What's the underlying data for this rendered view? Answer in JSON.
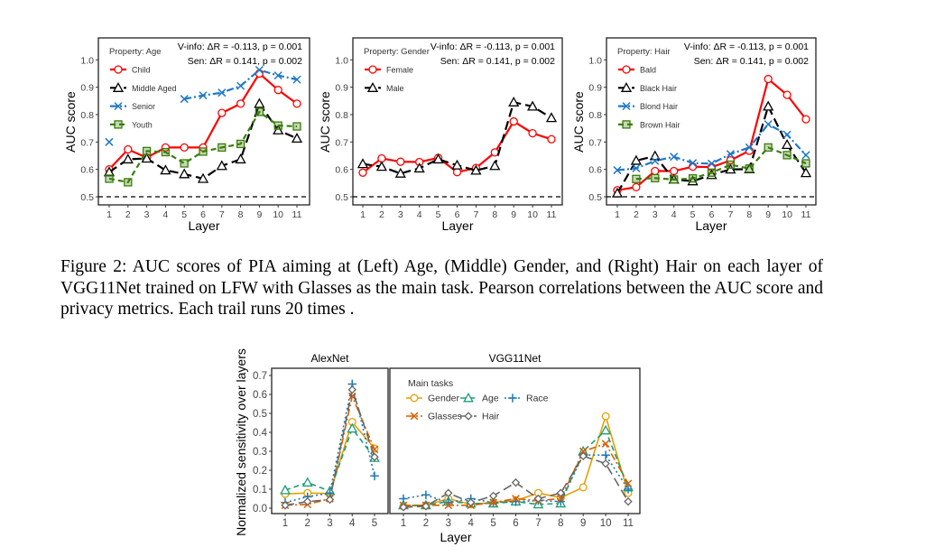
{
  "caption": "Figure 2: AUC scores of PIA aiming at (Left) Age, (Middle) Gender, and (Right) Hair on each layer of VGG11Net trained on LFW with Glasses as the main task.  Pearson correlations between the AUC score and privacy metrics. Each trail runs 20 times .",
  "chart_data": [
    {
      "type": "line",
      "legend_title": "Property: Age",
      "annotations": [
        "V-info: ΔR = -0.113, p = 0.001",
        "Sen: ΔR = 0.141, p = 0.002"
      ],
      "xlabel": "Layer",
      "ylabel": "AUC score",
      "x": [
        1,
        2,
        3,
        4,
        5,
        6,
        7,
        8,
        9,
        10,
        11
      ],
      "ylim": [
        0.47,
        1.05
      ],
      "yticks": [
        "0.5",
        "0.6",
        "0.7",
        "0.8",
        "0.9",
        "1.0"
      ],
      "reference_line": 0.5,
      "legend_placement": "top-left",
      "series": [
        {
          "name": "Child",
          "color": "#ff0000",
          "marker": "circle",
          "dash": "solid",
          "values": [
            0.6,
            0.673,
            0.643,
            0.68,
            0.68,
            0.68,
            0.806,
            0.84,
            0.95,
            0.89,
            0.84
          ]
        },
        {
          "name": "Middle Aged",
          "color": "#000000",
          "marker": "triangle",
          "dash": "longdash",
          "values": [
            0.59,
            0.637,
            0.64,
            0.597,
            0.583,
            0.566,
            0.613,
            0.637,
            0.84,
            0.743,
            0.713
          ]
        },
        {
          "name": "Senior",
          "color": "#1f78c8",
          "marker": "x",
          "dash": "dashdot",
          "values": [
            0.7,
            null,
            null,
            null,
            0.857,
            0.87,
            0.88,
            0.905,
            0.963,
            0.943,
            0.928
          ]
        },
        {
          "name": "Youth",
          "color": "#3a7d0a",
          "marker": "square",
          "dash": "dash",
          "values": [
            0.566,
            0.553,
            0.667,
            0.663,
            0.622,
            0.665,
            0.68,
            0.693,
            0.81,
            0.76,
            0.757
          ]
        }
      ]
    },
    {
      "type": "line",
      "legend_title": "Property: Gender",
      "annotations": [
        "V-info: ΔR = -0.113, p = 0.001",
        "Sen: ΔR = 0.141, p = 0.002"
      ],
      "xlabel": "Layer",
      "ylabel": "AUC score",
      "x": [
        1,
        2,
        3,
        4,
        5,
        6,
        7,
        8,
        9,
        10,
        11
      ],
      "ylim": [
        0.47,
        1.05
      ],
      "yticks": [
        "0.5",
        "0.6",
        "0.7",
        "0.8",
        "0.9",
        "1.0"
      ],
      "reference_line": 0.5,
      "legend_placement": "top-left",
      "series": [
        {
          "name": "Female",
          "color": "#ff0000",
          "marker": "circle",
          "dash": "solid",
          "values": [
            0.588,
            0.64,
            0.628,
            0.627,
            0.642,
            0.59,
            0.605,
            0.662,
            0.775,
            0.732,
            0.71
          ]
        },
        {
          "name": "Male",
          "color": "#000000",
          "marker": "triangle",
          "dash": "longdash",
          "values": [
            0.62,
            0.61,
            0.585,
            0.604,
            0.637,
            0.615,
            0.596,
            0.613,
            0.845,
            0.83,
            0.788
          ]
        }
      ]
    },
    {
      "type": "line",
      "legend_title": "Property: Hair",
      "annotations": [
        "V-info: ΔR = -0.113, p = 0.001",
        "Sen: ΔR = 0.141, p = 0.002"
      ],
      "xlabel": "Layer",
      "ylabel": "AUC score",
      "x": [
        1,
        2,
        3,
        4,
        5,
        6,
        7,
        8,
        9,
        10,
        11
      ],
      "ylim": [
        0.47,
        1.05
      ],
      "yticks": [
        "0.5",
        "0.6",
        "0.7",
        "0.8",
        "0.9",
        "1.0"
      ],
      "reference_line": 0.5,
      "legend_placement": "top-left",
      "series": [
        {
          "name": "Bald",
          "color": "#ff0000",
          "marker": "circle",
          "dash": "solid",
          "values": [
            0.524,
            0.535,
            0.594,
            0.594,
            0.61,
            0.608,
            0.633,
            0.668,
            0.93,
            0.872,
            0.783
          ]
        },
        {
          "name": "Black Hair",
          "color": "#000000",
          "marker": "triangle",
          "dash": "longdash",
          "values": [
            0.513,
            0.632,
            0.649,
            0.563,
            0.557,
            0.58,
            0.6,
            0.601,
            0.83,
            0.69,
            0.587
          ]
        },
        {
          "name": "Blond Hair",
          "color": "#1f78c8",
          "marker": "x",
          "dash": "dashdot",
          "values": [
            0.597,
            0.604,
            0.631,
            0.646,
            0.623,
            0.621,
            0.656,
            0.68,
            0.765,
            0.727,
            0.652
          ]
        },
        {
          "name": "Brown Hair",
          "color": "#3a7d0a",
          "marker": "square",
          "dash": "dash",
          "values": [
            null,
            0.565,
            0.568,
            0.563,
            0.567,
            0.588,
            0.617,
            0.603,
            0.68,
            0.652,
            0.622
          ]
        }
      ]
    },
    {
      "type": "line",
      "facet_title": "AlexNet",
      "xlabel": "Layer",
      "ylabel": "Normalized sensitivity over layers",
      "x": [
        1,
        2,
        3,
        4,
        5
      ],
      "ylim": [
        -0.01,
        0.74
      ],
      "yticks": [
        "0.0",
        "0.1",
        "0.2",
        "0.3",
        "0.4",
        "0.5",
        "0.6",
        "0.7"
      ],
      "series": [
        {
          "name": "Gender",
          "color": "#e69f00",
          "marker": "circle",
          "dash": "solid",
          "values": [
            0.075,
            0.08,
            0.077,
            0.455,
            0.315
          ]
        },
        {
          "name": "Age",
          "color": "#1a9e77",
          "marker": "triangle",
          "dash": "dash",
          "values": [
            0.095,
            0.135,
            0.09,
            0.42,
            0.265
          ]
        },
        {
          "name": "Race",
          "color": "#1f78b4",
          "marker": "plus",
          "dash": "dot",
          "values": [
            0.03,
            0.06,
            0.08,
            0.655,
            0.17
          ]
        },
        {
          "name": "Glasses",
          "color": "#d95f02",
          "marker": "x",
          "dash": "dashdot",
          "values": [
            0.015,
            0.02,
            0.05,
            0.59,
            0.31
          ]
        },
        {
          "name": "Hair",
          "color": "#666666",
          "marker": "diamond",
          "dash": "longdash",
          "values": [
            0.015,
            0.035,
            0.045,
            0.625,
            0.27
          ]
        }
      ]
    },
    {
      "type": "line",
      "facet_title": "VGG11Net",
      "legend_title": "Main tasks",
      "legend_placement": "top-left",
      "xlabel": "Layer",
      "x": [
        1,
        2,
        3,
        4,
        5,
        6,
        7,
        8,
        9,
        10,
        11
      ],
      "ylim": [
        -0.01,
        0.74
      ],
      "series": [
        {
          "name": "Gender",
          "color": "#e69f00",
          "marker": "circle",
          "dash": "solid",
          "values": [
            0.01,
            0.015,
            0.05,
            0.02,
            0.03,
            0.04,
            0.08,
            0.055,
            0.11,
            0.485,
            0.08
          ]
        },
        {
          "name": "Age",
          "color": "#1a9e77",
          "marker": "triangle",
          "dash": "dash",
          "values": [
            0.015,
            0.015,
            0.035,
            0.025,
            0.025,
            0.035,
            0.02,
            0.025,
            0.3,
            0.41,
            0.11
          ]
        },
        {
          "name": "Race",
          "color": "#1f78b4",
          "marker": "plus",
          "dash": "dot",
          "values": [
            0.05,
            0.07,
            0.03,
            0.05,
            0.03,
            0.035,
            0.04,
            0.035,
            0.28,
            0.28,
            0.1
          ]
        },
        {
          "name": "Glasses",
          "color": "#d95f02",
          "marker": "x",
          "dash": "dashdot",
          "values": [
            0.015,
            0.015,
            0.015,
            0.015,
            0.03,
            0.05,
            0.04,
            0.05,
            0.3,
            0.34,
            0.13
          ]
        },
        {
          "name": "Hair",
          "color": "#666666",
          "marker": "diamond",
          "dash": "longdash",
          "values": [
            0.005,
            0.01,
            0.08,
            0.03,
            0.065,
            0.135,
            0.05,
            0.08,
            0.275,
            0.235,
            0.035
          ]
        }
      ]
    }
  ]
}
